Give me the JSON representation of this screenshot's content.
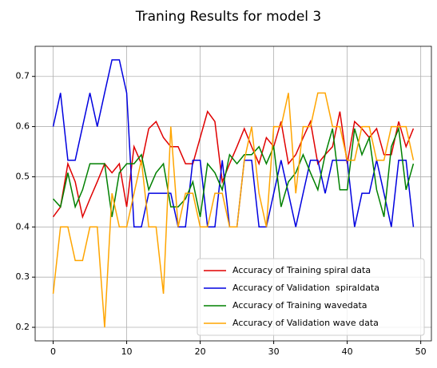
{
  "chart_data": {
    "type": "line",
    "title": "Traning Results for model 3",
    "x": [
      0,
      1,
      2,
      3,
      4,
      5,
      6,
      7,
      8,
      9,
      10,
      11,
      12,
      13,
      14,
      15,
      16,
      17,
      18,
      19,
      20,
      21,
      22,
      23,
      24,
      25,
      26,
      27,
      28,
      29,
      30,
      31,
      32,
      33,
      34,
      35,
      36,
      37,
      38,
      39,
      40,
      41,
      42,
      43,
      44,
      45,
      46,
      47,
      48,
      49
    ],
    "series": [
      {
        "name": "Accuracy of Training spiral data",
        "color": "#e00000",
        "values": [
          0.42,
          0.44,
          0.526,
          0.49,
          0.42,
          0.456,
          0.49,
          0.526,
          0.508,
          0.526,
          0.44,
          0.56,
          0.526,
          0.596,
          0.61,
          0.578,
          0.56,
          0.56,
          0.526,
          0.526,
          0.578,
          0.63,
          0.61,
          0.49,
          0.526,
          0.56,
          0.596,
          0.56,
          0.526,
          0.578,
          0.56,
          0.61,
          0.526,
          0.544,
          0.578,
          0.61,
          0.526,
          0.544,
          0.56,
          0.63,
          0.526,
          0.61,
          0.596,
          0.578,
          0.596,
          0.544,
          0.544,
          0.61,
          0.56,
          0.596
        ]
      },
      {
        "name": "Accuracy of Validation  spiraldata",
        "color": "#0000e0",
        "values": [
          0.6,
          0.667,
          0.533,
          0.533,
          0.6,
          0.667,
          0.6,
          0.667,
          0.733,
          0.733,
          0.667,
          0.4,
          0.4,
          0.467,
          0.467,
          0.467,
          0.467,
          0.4,
          0.4,
          0.533,
          0.533,
          0.4,
          0.4,
          0.533,
          0.4,
          0.4,
          0.533,
          0.533,
          0.4,
          0.4,
          0.467,
          0.533,
          0.467,
          0.4,
          0.467,
          0.533,
          0.533,
          0.467,
          0.533,
          0.533,
          0.533,
          0.4,
          0.467,
          0.467,
          0.533,
          0.467,
          0.4,
          0.533,
          0.533,
          0.4
        ]
      },
      {
        "name": "Accuracy of Training wavedata",
        "color": "#008000",
        "values": [
          0.456,
          0.44,
          0.508,
          0.44,
          0.474,
          0.526,
          0.526,
          0.526,
          0.42,
          0.508,
          0.526,
          0.526,
          0.544,
          0.474,
          0.508,
          0.526,
          0.44,
          0.44,
          0.456,
          0.49,
          0.42,
          0.526,
          0.508,
          0.474,
          0.544,
          0.526,
          0.544,
          0.544,
          0.56,
          0.526,
          0.56,
          0.44,
          0.49,
          0.508,
          0.544,
          0.508,
          0.474,
          0.544,
          0.596,
          0.474,
          0.474,
          0.596,
          0.544,
          0.578,
          0.474,
          0.42,
          0.56,
          0.596,
          0.474,
          0.526
        ]
      },
      {
        "name": "Accuracy of Validation wave data",
        "color": "#ffa500",
        "values": [
          0.267,
          0.4,
          0.4,
          0.333,
          0.333,
          0.4,
          0.4,
          0.2,
          0.467,
          0.4,
          0.4,
          0.467,
          0.533,
          0.4,
          0.4,
          0.267,
          0.6,
          0.4,
          0.467,
          0.467,
          0.4,
          0.4,
          0.467,
          0.467,
          0.4,
          0.4,
          0.533,
          0.6,
          0.467,
          0.4,
          0.6,
          0.6,
          0.667,
          0.467,
          0.6,
          0.6,
          0.667,
          0.667,
          0.6,
          0.6,
          0.533,
          0.533,
          0.6,
          0.6,
          0.533,
          0.533,
          0.6,
          0.6,
          0.6,
          0.533
        ]
      }
    ],
    "xlim": [
      -2.45,
      51.45
    ],
    "xticks": [
      0,
      10,
      20,
      30,
      40,
      50
    ],
    "ylim": [
      0.173,
      0.76
    ],
    "yticks": [
      0.2,
      0.3,
      0.4,
      0.5,
      0.6,
      0.7
    ],
    "grid": true,
    "legend": "lower right"
  }
}
